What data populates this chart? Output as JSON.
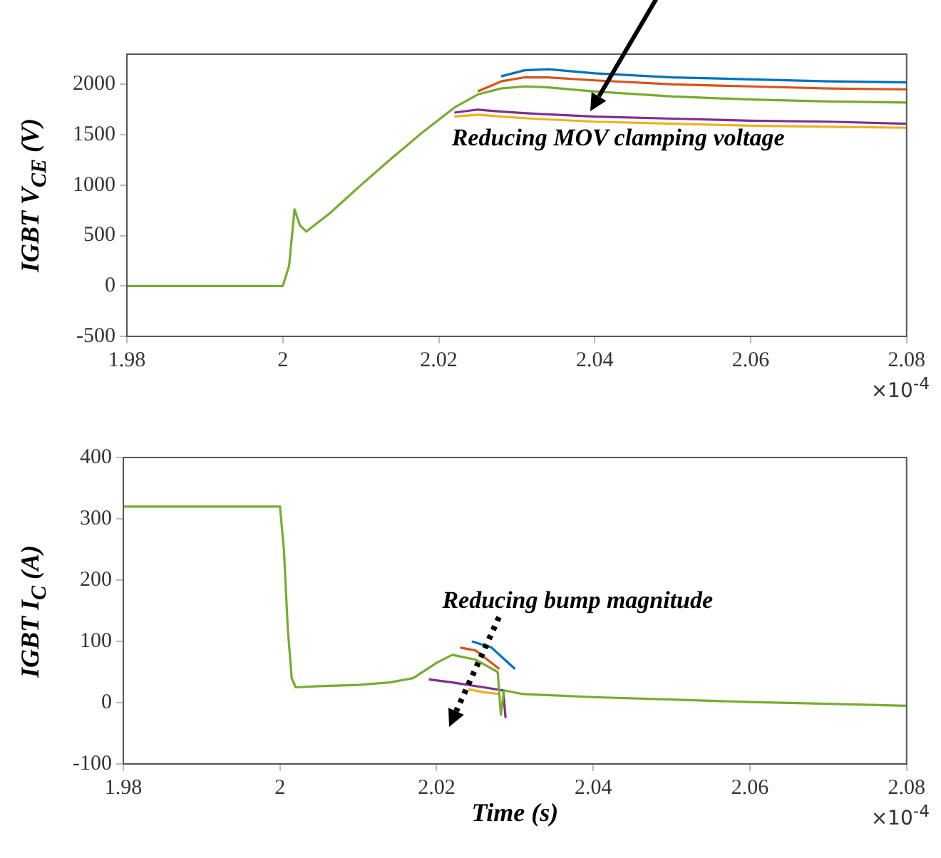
{
  "chart_data": [
    {
      "type": "line",
      "ylabel": "IGBT V$_{CE}$ (V)",
      "xlim": [
        1.98,
        2.08
      ],
      "xticks": [
        1.98,
        2,
        2.02,
        2.04,
        2.06,
        2.08
      ],
      "ylim": [
        -500,
        2300
      ],
      "yticks": [
        -500,
        0,
        500,
        1000,
        1500,
        2000
      ],
      "grid": false,
      "legend": false,
      "marker": "none",
      "line_style": "solid",
      "annotations": [
        "Reducing MOV clamping voltage",
        "×10$^{-4}$"
      ],
      "series": [
        {
          "color": "#0072bd",
          "x": [
            2.028,
            2.031,
            2.034,
            2.04,
            2.05,
            2.06,
            2.07,
            2.08
          ],
          "values": [
            2080,
            2140,
            2150,
            2110,
            2070,
            2050,
            2030,
            2020
          ]
        },
        {
          "color": "#d95319",
          "x": [
            2.025,
            2.028,
            2.031,
            2.034,
            2.04,
            2.05,
            2.06,
            2.07,
            2.08
          ],
          "values": [
            1930,
            2030,
            2070,
            2070,
            2040,
            2000,
            1980,
            1960,
            1950
          ]
        },
        {
          "color": "#edb120",
          "x": [
            2.022,
            2.025,
            2.028,
            2.032,
            2.04,
            2.05,
            2.06,
            2.07,
            2.08
          ],
          "values": [
            1680,
            1700,
            1680,
            1660,
            1630,
            1610,
            1590,
            1580,
            1570
          ]
        },
        {
          "color": "#7e2f8e",
          "x": [
            2.022,
            2.025,
            2.028,
            2.032,
            2.04,
            2.05,
            2.06,
            2.07,
            2.08
          ],
          "values": [
            1720,
            1750,
            1730,
            1710,
            1680,
            1660,
            1640,
            1630,
            1610
          ]
        },
        {
          "color": "#77ac30",
          "x": [
            1.98,
            2.0,
            2.0008,
            2.0015,
            2.0022,
            2.003,
            2.006,
            2.01,
            2.014,
            2.018,
            2.02,
            2.022,
            2.025,
            2.028,
            2.031,
            2.034,
            2.04,
            2.05,
            2.06,
            2.07,
            2.08
          ],
          "values": [
            0,
            0,
            200,
            760,
            600,
            540,
            720,
            1000,
            1270,
            1530,
            1650,
            1770,
            1900,
            1960,
            1980,
            1970,
            1930,
            1880,
            1850,
            1830,
            1820
          ]
        }
      ]
    },
    {
      "type": "line",
      "ylabel": "IGBT I$_{C}$ (A)",
      "xlabel": "Time (s)",
      "xlim": [
        1.98,
        2.08
      ],
      "xticks": [
        1.98,
        2,
        2.02,
        2.04,
        2.06,
        2.08
      ],
      "ylim": [
        -100,
        400
      ],
      "yticks": [
        -100,
        0,
        100,
        200,
        300,
        400
      ],
      "grid": false,
      "legend": false,
      "marker": "none",
      "line_style": "solid",
      "annotations": [
        "Reducing bump magnitude",
        "×10$^{-4}$"
      ],
      "series": [
        {
          "color": "#0072bd",
          "x": [
            2.0245,
            2.027,
            2.03
          ],
          "values": [
            100,
            90,
            55
          ]
        },
        {
          "color": "#d95319",
          "x": [
            2.023,
            2.025,
            2.028
          ],
          "values": [
            90,
            85,
            55
          ]
        },
        {
          "color": "#edb120",
          "x": [
            2.024,
            2.026,
            2.028
          ],
          "values": [
            22,
            17,
            14
          ]
        },
        {
          "color": "#7e2f8e",
          "x": [
            2.019,
            2.022,
            2.026,
            2.0285,
            2.0288
          ],
          "values": [
            38,
            33,
            25,
            20,
            -25
          ]
        },
        {
          "color": "#77ac30",
          "x": [
            1.98,
            2.0,
            2.0005,
            2.001,
            2.0015,
            2.002,
            2.005,
            2.01,
            2.014,
            2.017,
            2.02,
            2.022,
            2.025,
            2.0278,
            2.0282,
            2.0286,
            2.031,
            2.04,
            2.05,
            2.06,
            2.07,
            2.08
          ],
          "values": [
            320,
            320,
            250,
            120,
            40,
            25,
            27,
            29,
            33,
            40,
            65,
            78,
            70,
            50,
            -20,
            20,
            14,
            9,
            5,
            1,
            -2,
            -5
          ]
        }
      ]
    }
  ]
}
